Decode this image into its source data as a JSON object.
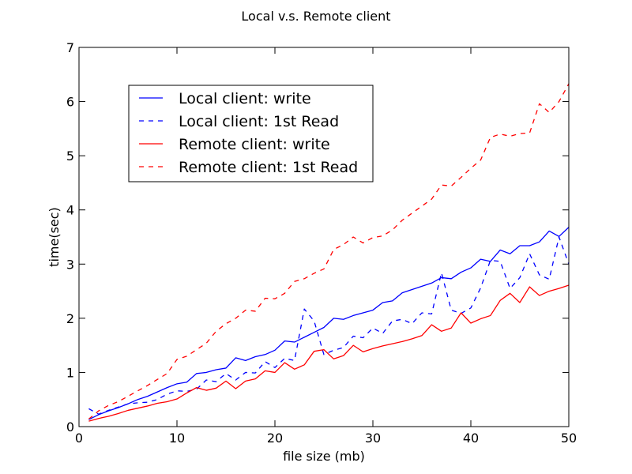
{
  "chart_data": {
    "type": "line",
    "title": "Local v.s. Remote client",
    "xlabel": "file size (mb)",
    "ylabel": "time(sec)",
    "xlim": [
      0,
      50
    ],
    "ylim": [
      0,
      7
    ],
    "xticks": [
      0,
      10,
      20,
      30,
      40,
      50
    ],
    "yticks": [
      0,
      1,
      2,
      3,
      4,
      5,
      6,
      7
    ],
    "grid": false,
    "legend_position": "top-left",
    "x": [
      1,
      2,
      3,
      4,
      5,
      6,
      7,
      8,
      9,
      10,
      11,
      12,
      13,
      14,
      15,
      16,
      17,
      18,
      19,
      20,
      21,
      22,
      23,
      24,
      25,
      26,
      27,
      28,
      29,
      30,
      31,
      32,
      33,
      34,
      35,
      36,
      37,
      38,
      39,
      40,
      41,
      42,
      43,
      44,
      45,
      46,
      47,
      48,
      49,
      50
    ],
    "series": [
      {
        "name": "Local client: write",
        "color": "#0000ff",
        "dash": "solid",
        "values": [
          0.13,
          0.22,
          0.29,
          0.35,
          0.42,
          0.5,
          0.56,
          0.64,
          0.72,
          0.79,
          0.82,
          0.98,
          1.0,
          1.05,
          1.08,
          1.27,
          1.22,
          1.29,
          1.33,
          1.41,
          1.58,
          1.56,
          1.65,
          1.74,
          1.83,
          2.0,
          1.98,
          2.05,
          2.1,
          2.15,
          2.29,
          2.32,
          2.47,
          2.53,
          2.59,
          2.65,
          2.75,
          2.73,
          2.85,
          2.93,
          3.09,
          3.05,
          3.26,
          3.19,
          3.34,
          3.34,
          3.41,
          3.61,
          3.51,
          3.68
        ]
      },
      {
        "name": "Local client: 1st Read",
        "color": "#0000ff",
        "dash": "dashed",
        "values": [
          0.33,
          0.23,
          0.3,
          0.36,
          0.42,
          0.44,
          0.45,
          0.5,
          0.6,
          0.66,
          0.65,
          0.69,
          0.86,
          0.83,
          0.98,
          0.86,
          1.0,
          0.99,
          1.2,
          1.09,
          1.26,
          1.22,
          2.17,
          1.95,
          1.33,
          1.41,
          1.46,
          1.67,
          1.64,
          1.82,
          1.72,
          1.95,
          1.98,
          1.9,
          2.1,
          2.08,
          2.84,
          2.15,
          2.09,
          2.19,
          2.56,
          3.07,
          3.05,
          2.55,
          2.75,
          3.19,
          2.8,
          2.72,
          3.5,
          3.0
        ]
      },
      {
        "name": "Remote client: write",
        "color": "#ff0000",
        "dash": "solid",
        "values": [
          0.1,
          0.15,
          0.19,
          0.24,
          0.3,
          0.34,
          0.38,
          0.43,
          0.46,
          0.51,
          0.62,
          0.72,
          0.67,
          0.71,
          0.84,
          0.7,
          0.84,
          0.88,
          1.03,
          1.0,
          1.18,
          1.06,
          1.14,
          1.39,
          1.42,
          1.25,
          1.31,
          1.5,
          1.38,
          1.44,
          1.49,
          1.53,
          1.57,
          1.62,
          1.68,
          1.88,
          1.76,
          1.82,
          2.1,
          1.91,
          1.99,
          2.05,
          2.33,
          2.46,
          2.29,
          2.58,
          2.42,
          2.5,
          2.55,
          2.61
        ]
      },
      {
        "name": "Remote client: 1st Read",
        "color": "#ff0000",
        "dash": "dashed",
        "values": [
          0.14,
          0.29,
          0.39,
          0.46,
          0.56,
          0.66,
          0.76,
          0.87,
          0.98,
          1.24,
          1.3,
          1.42,
          1.54,
          1.76,
          1.9,
          2.0,
          2.15,
          2.13,
          2.37,
          2.36,
          2.46,
          2.68,
          2.73,
          2.83,
          2.91,
          3.27,
          3.36,
          3.5,
          3.39,
          3.49,
          3.52,
          3.63,
          3.81,
          3.94,
          4.07,
          4.2,
          4.46,
          4.44,
          4.6,
          4.77,
          4.92,
          5.34,
          5.4,
          5.36,
          5.41,
          5.42,
          5.96,
          5.8,
          6.0,
          6.33
        ]
      }
    ]
  }
}
